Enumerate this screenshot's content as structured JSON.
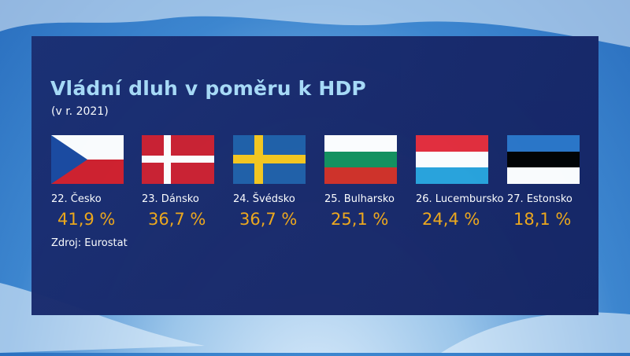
{
  "title": "Vládní dluh v poměru k HDP",
  "subtitle": "(v r. 2021)",
  "countries": [
    {
      "rank_label": "22. Česko",
      "value": "41,9 %",
      "flag_icon": "czech-flag-icon"
    },
    {
      "rank_label": "23. Dánsko",
      "value": "36,7 %",
      "flag_icon": "danish-flag-icon"
    },
    {
      "rank_label": "24. Švédsko",
      "value": "36,7 %",
      "flag_icon": "swedish-flag-icon"
    },
    {
      "rank_label": "25. Bulharsko",
      "value": "25,1 %",
      "flag_icon": "bulgarian-flag-icon"
    },
    {
      "rank_label": "26. Lucembursko",
      "value": "24,4 %",
      "flag_icon": "luxembourg-flag-icon"
    },
    {
      "rank_label": "27. Estonsko",
      "value": "18,1 %",
      "flag_icon": "estonian-flag-icon"
    }
  ],
  "source": "Zdroj: Eurostat",
  "colors": {
    "title": "#a9dcf8",
    "value": "#f0a818",
    "panel": "#17286a"
  }
}
